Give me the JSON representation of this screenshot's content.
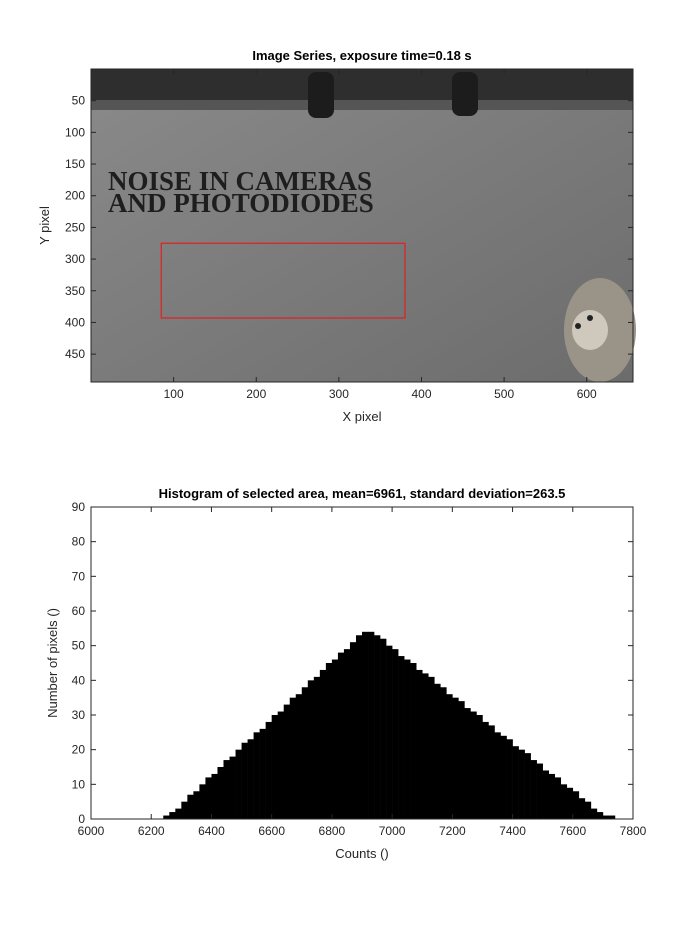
{
  "chart_data": [
    {
      "type": "image",
      "title": "Image Series, exposure time=0.18 s",
      "xlabel": "X pixel",
      "ylabel": "Y pixel",
      "image_text": [
        "NOISE IN CAMERAS",
        "AND PHOTODIODES"
      ],
      "xlim": [
        0,
        656
      ],
      "ylim": [
        0,
        494
      ],
      "ydir": "reverse",
      "xticks": [
        100,
        200,
        300,
        400,
        500,
        600
      ],
      "yticks": [
        50,
        100,
        150,
        200,
        250,
        300,
        350,
        400,
        450
      ],
      "selection": {
        "x": [
          85,
          380
        ],
        "y": [
          275,
          393
        ],
        "color": "#e02020"
      }
    },
    {
      "type": "histogram",
      "title": "Histogram of selected area, mean=6961, standard deviation=263.5",
      "xlabel": "Counts ()",
      "ylabel": "Number of pixels ()",
      "color": "#000000",
      "xlim": [
        6000,
        7800
      ],
      "ylim": [
        0,
        90
      ],
      "xticks": [
        6000,
        6200,
        6400,
        6600,
        6800,
        7000,
        7200,
        7400,
        7600,
        7800
      ],
      "yticks": [
        0,
        10,
        20,
        30,
        40,
        50,
        60,
        70,
        80,
        90
      ],
      "bins": [
        6240,
        6260,
        6280,
        6300,
        6320,
        6340,
        6360,
        6380,
        6400,
        6420,
        6440,
        6460,
        6480,
        6500,
        6520,
        6540,
        6560,
        6580,
        6600,
        6620,
        6640,
        6660,
        6680,
        6700,
        6720,
        6740,
        6760,
        6780,
        6800,
        6820,
        6840,
        6860,
        6880,
        6900,
        6920,
        6940,
        6960,
        6980,
        7000,
        7020,
        7040,
        7060,
        7080,
        7100,
        7120,
        7140,
        7160,
        7180,
        7200,
        7220,
        7240,
        7260,
        7280,
        7300,
        7320,
        7340,
        7360,
        7380,
        7400,
        7420,
        7440,
        7460,
        7480,
        7500,
        7520,
        7540,
        7560,
        7580,
        7600,
        7620,
        7640,
        7660,
        7680,
        7700,
        7720,
        7740,
        7760
      ],
      "values": [
        1,
        2,
        3,
        5,
        7,
        8,
        10,
        12,
        13,
        15,
        17,
        18,
        20,
        22,
        23,
        25,
        26,
        28,
        30,
        31,
        33,
        35,
        36,
        38,
        40,
        41,
        43,
        45,
        46,
        48,
        49,
        51,
        53,
        54,
        54,
        53,
        52,
        50,
        49,
        47,
        46,
        45,
        43,
        42,
        41,
        39,
        38,
        36,
        35,
        34,
        32,
        31,
        30,
        28,
        27,
        25,
        24,
        23,
        21,
        20,
        19,
        17,
        16,
        14,
        13,
        12,
        10,
        9,
        8,
        6,
        5,
        3,
        2,
        1,
        1,
        0
      ]
    }
  ]
}
